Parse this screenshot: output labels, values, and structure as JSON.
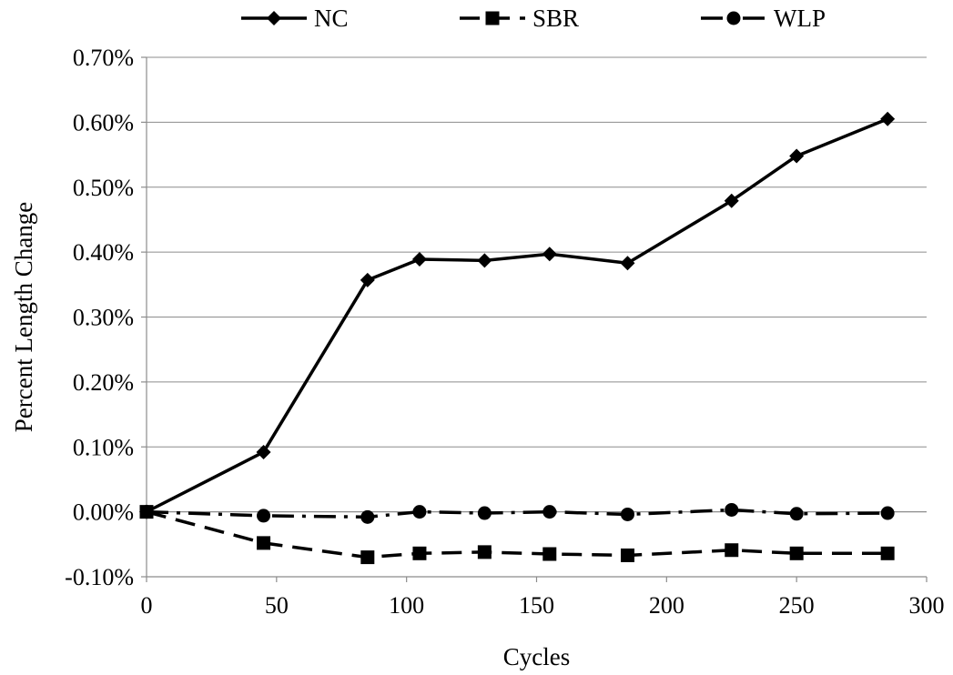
{
  "chart_data": {
    "type": "line",
    "title": "",
    "xlabel": "Cycles",
    "ylabel": "Percent Length Change",
    "xlim": [
      0,
      300
    ],
    "ylim": [
      -0.001,
      0.007
    ],
    "x_ticks": [
      0,
      50,
      100,
      150,
      200,
      250,
      300
    ],
    "y_ticks": [
      -0.001,
      0,
      0.001,
      0.002,
      0.003,
      0.004,
      0.005,
      0.006,
      0.007
    ],
    "x_tick_labels": [
      "0",
      "50",
      "100",
      "150",
      "200",
      "250",
      "300"
    ],
    "y_tick_labels": [
      "-0.10%",
      "0.00%",
      "0.10%",
      "0.20%",
      "0.30%",
      "0.40%",
      "0.50%",
      "0.60%",
      "0.70%"
    ],
    "grid": "horizontal",
    "legend_position": "top",
    "x": [
      0,
      45,
      85,
      105,
      130,
      155,
      185,
      225,
      250,
      285
    ],
    "series": [
      {
        "name": "NC",
        "marker": "diamond",
        "line_style": "solid",
        "color": "#000000",
        "values": [
          0,
          0.00092,
          0.00357,
          0.00389,
          0.00387,
          0.00397,
          0.00383,
          0.00479,
          0.00548,
          0.00605
        ]
      },
      {
        "name": "SBR",
        "marker": "square",
        "line_style": "dashed",
        "color": "#000000",
        "values": [
          0,
          -0.00048,
          -0.0007,
          -0.00064,
          -0.00062,
          -0.00065,
          -0.00067,
          -0.00059,
          -0.00064,
          -0.00064
        ]
      },
      {
        "name": "WLP",
        "marker": "circle",
        "line_style": "dash-dot",
        "color": "#000000",
        "values": [
          0,
          -6e-05,
          -8e-05,
          0,
          -2e-05,
          0,
          -4e-05,
          3e-05,
          -3e-05,
          -2e-05
        ]
      }
    ]
  }
}
